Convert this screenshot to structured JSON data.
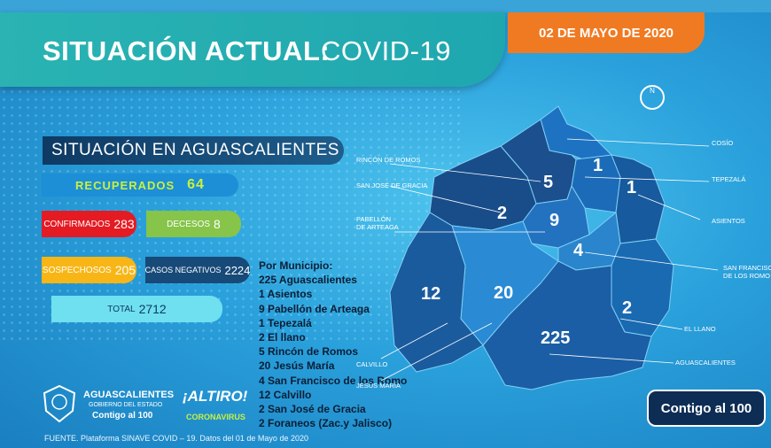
{
  "header": {
    "title_bold": "SITUACIÓN ACTUAL:",
    "title_light": "COVID-19",
    "date": "02 DE MAYO DE 2020"
  },
  "section": {
    "title": "SITUACIÓN EN AGUASCALIENTES"
  },
  "stats": {
    "recuperados": {
      "label": "RECUPERADOS",
      "value": "64",
      "color": "#1c8fd6"
    },
    "confirmados": {
      "label": "CONFIRMADOS",
      "value": "283",
      "color": "#e41b23"
    },
    "decesos": {
      "label": "DECESOS",
      "value": "8",
      "color": "#86c44a"
    },
    "sospechosos": {
      "label": "SOSPECHOSOS",
      "value": "205",
      "color": "#f8b616"
    },
    "negativos": {
      "label": "CASOS NEGATIVOS",
      "value": "2224",
      "color": "#174a78"
    },
    "total": {
      "label": "TOTAL",
      "value": "2712",
      "color": "#6fe0f0"
    }
  },
  "municipios": {
    "title": "Por Municipio:",
    "items": [
      "225 Aguascalientes",
      "1   Asientos",
      "9   Pabellón de Arteaga",
      "1   Tepezalá",
      "2   El llano",
      "5   Rincón de Romos",
      "20 Jesús María",
      "4   San Francisco de los Romo",
      "12    Calvillo",
      "2   San José de Gracia",
      "2   Foraneos (Zac.y Jalisco)"
    ]
  },
  "map": {
    "labels": {
      "cosio": "COSÍO",
      "tepezala": "TEPEZALÁ",
      "asientos": "ASIENTOS",
      "sanfrancisco1": "SAN FRANCISCO",
      "sanfrancisco2": "DE LOS ROMO",
      "elllano": "EL LLANO",
      "aguascalientes": "AGUASCALIENTES",
      "rincon": "RINCÓN DE ROMOS",
      "sanjose": "SAN JOSÉ DE GRACIA",
      "pabellon1": "PABELLÓN",
      "pabellon2": "DE ARTEAGA",
      "calvillo": "CALVILLO",
      "jesusmaria": "JESÚS MARÍA"
    },
    "numbers": {
      "cosio": "1",
      "tepezala": "1",
      "rincon": "5",
      "sanjose": "2",
      "pabellon": "9",
      "sanfrancisco": "4",
      "calvillo": "12",
      "jesusmaria": "20",
      "elllano": "2",
      "aguascalientes": "225"
    },
    "compass": "N"
  },
  "logos": {
    "state1": "AGUASCALIENTES",
    "state2": "GOBIERNO DEL ESTADO",
    "state3": "Contigo al 100",
    "altiro1": "¡ALTIRO!",
    "altiro2": "CORONAVIRUS",
    "badge": "Contigo al 100"
  },
  "footer": "FUENTE. Plataforma SINAVE COVID – 19. Datos del 01 de Mayo de 2020"
}
